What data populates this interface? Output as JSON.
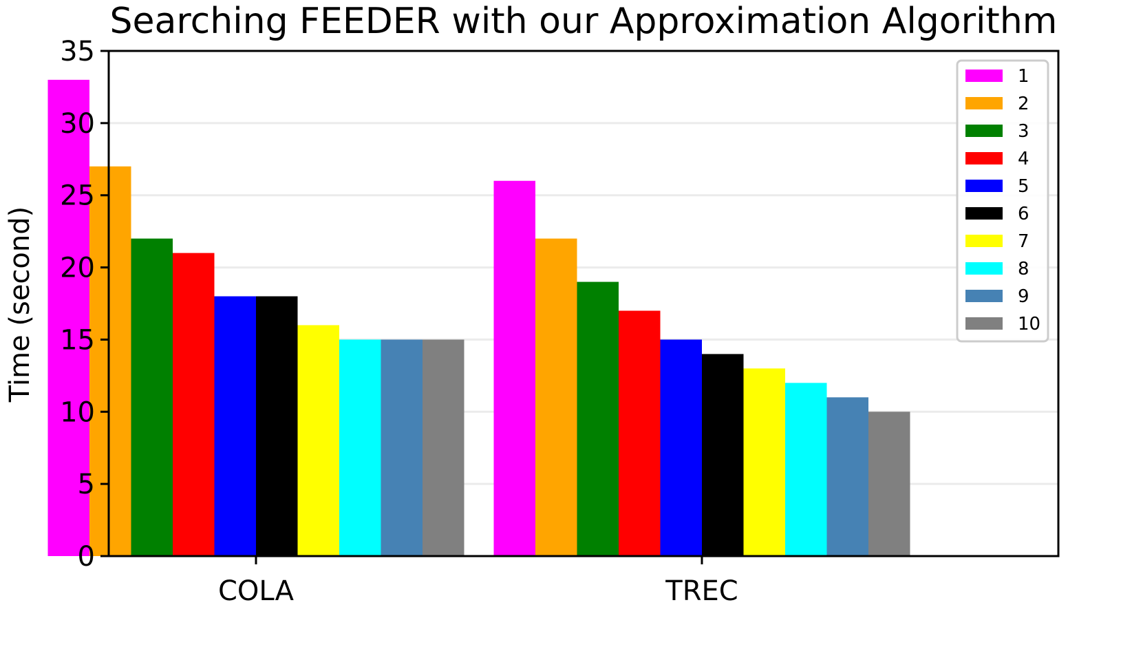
{
  "chart_data": {
    "type": "bar",
    "title": "Searching FEEDER with our Approximation Algorithm",
    "xlabel": "",
    "ylabel": "Time (second)",
    "ylim": [
      0,
      35
    ],
    "yticks": [
      0,
      5,
      10,
      15,
      20,
      25,
      30,
      35
    ],
    "categories": [
      "COLA",
      "TREC"
    ],
    "grid": "horizontal",
    "legend_position": "top-right",
    "series": [
      {
        "name": "1",
        "color": "#ff00ff",
        "values": [
          33,
          26
        ]
      },
      {
        "name": "2",
        "color": "#ffa500",
        "values": [
          27,
          22
        ]
      },
      {
        "name": "3",
        "color": "#008000",
        "values": [
          22,
          19
        ]
      },
      {
        "name": "4",
        "color": "#ff0000",
        "values": [
          21,
          17
        ]
      },
      {
        "name": "5",
        "color": "#0000ff",
        "values": [
          18,
          15
        ]
      },
      {
        "name": "6",
        "color": "#000000",
        "values": [
          18,
          14
        ]
      },
      {
        "name": "7",
        "color": "#ffff00",
        "values": [
          16,
          13
        ]
      },
      {
        "name": "8",
        "color": "#00ffff",
        "values": [
          15,
          12
        ]
      },
      {
        "name": "9",
        "color": "#4682b4",
        "values": [
          15,
          11
        ]
      },
      {
        "name": "10",
        "color": "#808080",
        "values": [
          15,
          10
        ]
      }
    ]
  }
}
